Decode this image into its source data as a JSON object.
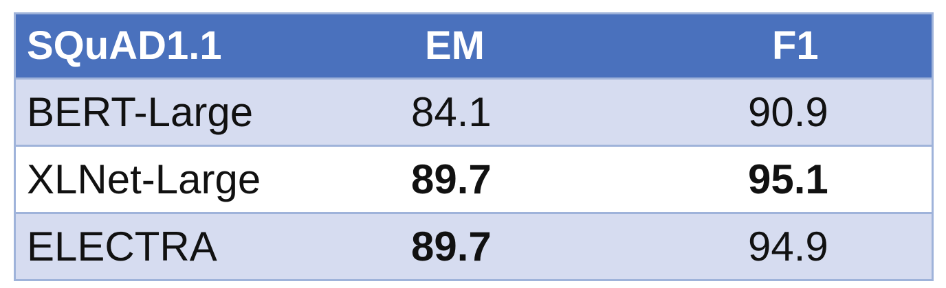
{
  "table": {
    "headers": [
      "SQuAD1.1",
      "EM",
      "F1"
    ],
    "rows": [
      {
        "model": "BERT-Large",
        "em": "84.1",
        "f1": "90.9",
        "em_bold": false,
        "f1_bold": false
      },
      {
        "model": "XLNet-Large",
        "em": "89.7",
        "f1": "95.1",
        "em_bold": true,
        "f1_bold": true
      },
      {
        "model": "ELECTRA",
        "em": "89.7",
        "f1": "94.9",
        "em_bold": true,
        "f1_bold": false
      }
    ]
  },
  "colors": {
    "header_bg": "#4a71bd",
    "band_bg": "#d6dcf0",
    "border": "#9fb3da"
  }
}
